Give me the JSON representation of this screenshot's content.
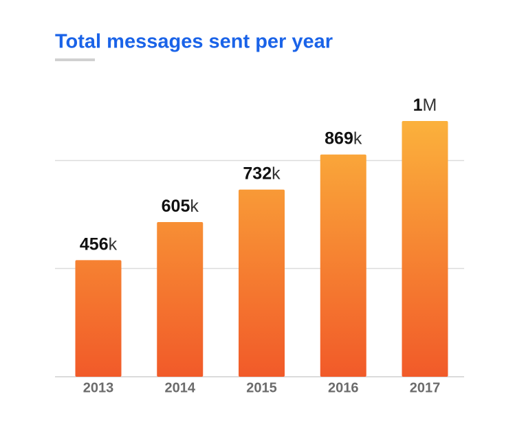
{
  "chart_data": {
    "type": "bar",
    "title": "Total messages sent per year",
    "categories": [
      "2013",
      "2014",
      "2015",
      "2016",
      "2017"
    ],
    "values": [
      456000,
      605000,
      732000,
      869000,
      1000000
    ],
    "value_labels": [
      "456k",
      "605k",
      "732k",
      "869k",
      "1M"
    ],
    "colors": [
      "#fbb13c",
      "#f15a29"
    ],
    "ylim": [
      0,
      1000000
    ]
  }
}
